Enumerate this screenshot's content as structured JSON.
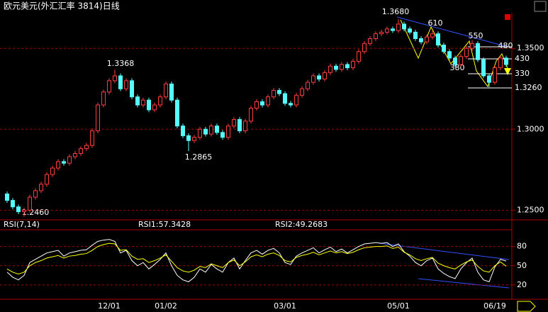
{
  "chart_data": [
    {
      "type": "candlestick",
      "title": "欧元美元(外汇汇率 3814)日线",
      "up_color": "#ff3c3c",
      "down_color": "#54ffff",
      "ylim": [
        1.244,
        1.372
      ],
      "yticks": [
        {
          "value": 1.35,
          "label": "1.3500"
        },
        {
          "value": 1.3,
          "label": "1.3000"
        },
        {
          "value": 1.25,
          "label": "1.2500"
        }
      ],
      "grid": true,
      "annotations": [
        "1.3680",
        "1.3368",
        "1.2865",
        "1.2460",
        "610",
        "550",
        "380",
        "480",
        "430",
        "330",
        "1.3260"
      ],
      "categories": [
        null,
        null,
        null,
        null,
        null,
        null,
        null,
        null,
        null,
        null,
        null,
        null,
        null,
        null,
        null,
        null,
        null,
        null,
        "12/01",
        null,
        null,
        null,
        null,
        null,
        null,
        null,
        null,
        null,
        "01/02",
        null,
        null,
        null,
        null,
        null,
        null,
        null,
        null,
        null,
        null,
        null,
        null,
        null,
        null,
        null,
        null,
        null,
        null,
        null,
        null,
        "03/01",
        null,
        null,
        null,
        null,
        null,
        null,
        null,
        null,
        null,
        null,
        null,
        null,
        null,
        null,
        null,
        null,
        null,
        null,
        null,
        "05/01",
        null,
        null,
        null,
        null,
        null,
        null,
        null,
        null,
        null,
        null,
        null,
        null,
        null,
        null,
        null,
        null,
        "06/19",
        null,
        null
      ],
      "ohlc": [
        [
          1.26,
          1.2615,
          1.2545,
          1.256
        ],
        [
          1.256,
          1.2575,
          1.2505,
          1.252
        ],
        [
          1.252,
          1.2535,
          1.2475,
          1.249
        ],
        [
          1.249,
          1.2515,
          1.246,
          1.25
        ],
        [
          1.25,
          1.2595,
          1.2485,
          1.258
        ],
        [
          1.258,
          1.2635,
          1.2565,
          1.262
        ],
        [
          1.262,
          1.2675,
          1.2605,
          1.266
        ],
        [
          1.266,
          1.2735,
          1.2645,
          1.272
        ],
        [
          1.272,
          1.2775,
          1.2705,
          1.276
        ],
        [
          1.276,
          1.2815,
          1.2745,
          1.28
        ],
        [
          1.28,
          1.2815,
          1.2775,
          1.279
        ],
        [
          1.279,
          1.2845,
          1.2775,
          1.283
        ],
        [
          1.283,
          1.2865,
          1.2815,
          1.285
        ],
        [
          1.285,
          1.2895,
          1.2835,
          1.288
        ],
        [
          1.288,
          1.2915,
          1.2865,
          1.29
        ],
        [
          1.29,
          1.3005,
          1.2885,
          1.299
        ],
        [
          1.299,
          1.3165,
          1.2975,
          1.315
        ],
        [
          1.315,
          1.3245,
          1.3135,
          1.323
        ],
        [
          1.323,
          1.3315,
          1.3215,
          1.33
        ],
        [
          1.33,
          1.3368,
          1.3285,
          1.333
        ],
        [
          1.333,
          1.3345,
          1.3235,
          1.325
        ],
        [
          1.325,
          1.3315,
          1.3235,
          1.33
        ],
        [
          1.33,
          1.3315,
          1.3185,
          1.32
        ],
        [
          1.32,
          1.3215,
          1.3135,
          1.315
        ],
        [
          1.315,
          1.3195,
          1.3135,
          1.318
        ],
        [
          1.318,
          1.3195,
          1.3105,
          1.312
        ],
        [
          1.312,
          1.3165,
          1.3105,
          1.315
        ],
        [
          1.315,
          1.3215,
          1.3135,
          1.32
        ],
        [
          1.32,
          1.3295,
          1.3185,
          1.328
        ],
        [
          1.328,
          1.3295,
          1.3165,
          1.318
        ],
        [
          1.318,
          1.3195,
          1.3005,
          1.302
        ],
        [
          1.302,
          1.3035,
          1.2945,
          1.296
        ],
        [
          1.296,
          1.2975,
          1.2865,
          1.293
        ],
        [
          1.293,
          1.2965,
          1.2915,
          1.295
        ],
        [
          1.295,
          1.3015,
          1.2935,
          1.3
        ],
        [
          1.3,
          1.3015,
          1.2955,
          1.297
        ],
        [
          1.297,
          1.3035,
          1.2955,
          1.302
        ],
        [
          1.302,
          1.3035,
          1.2965,
          1.298
        ],
        [
          1.298,
          1.2995,
          1.2935,
          1.295
        ],
        [
          1.295,
          1.3035,
          1.2935,
          1.302
        ],
        [
          1.302,
          1.3075,
          1.3005,
          1.306
        ],
        [
          1.306,
          1.3075,
          1.2975,
          1.299
        ],
        [
          1.299,
          1.3065,
          1.2975,
          1.305
        ],
        [
          1.305,
          1.3145,
          1.3035,
          1.313
        ],
        [
          1.313,
          1.3185,
          1.3115,
          1.317
        ],
        [
          1.317,
          1.3185,
          1.3135,
          1.315
        ],
        [
          1.315,
          1.3215,
          1.3135,
          1.32
        ],
        [
          1.32,
          1.3255,
          1.3185,
          1.324
        ],
        [
          1.324,
          1.3255,
          1.3205,
          1.322
        ],
        [
          1.322,
          1.3235,
          1.3145,
          1.316
        ],
        [
          1.316,
          1.3175,
          1.3135,
          1.315
        ],
        [
          1.315,
          1.3225,
          1.3135,
          1.321
        ],
        [
          1.321,
          1.3265,
          1.3195,
          1.325
        ],
        [
          1.325,
          1.3305,
          1.3235,
          1.329
        ],
        [
          1.329,
          1.3345,
          1.3275,
          1.333
        ],
        [
          1.333,
          1.3345,
          1.3295,
          1.331
        ],
        [
          1.331,
          1.3365,
          1.3295,
          1.335
        ],
        [
          1.335,
          1.3405,
          1.3335,
          1.339
        ],
        [
          1.339,
          1.3405,
          1.3355,
          1.337
        ],
        [
          1.337,
          1.3415,
          1.3355,
          1.34
        ],
        [
          1.34,
          1.3415,
          1.3365,
          1.338
        ],
        [
          1.338,
          1.3435,
          1.3365,
          1.342
        ],
        [
          1.342,
          1.3495,
          1.3405,
          1.348
        ],
        [
          1.348,
          1.3545,
          1.3465,
          1.353
        ],
        [
          1.353,
          1.3575,
          1.3515,
          1.356
        ],
        [
          1.356,
          1.3605,
          1.3545,
          1.359
        ],
        [
          1.359,
          1.3615,
          1.3575,
          1.36
        ],
        [
          1.36,
          1.3635,
          1.3585,
          1.362
        ],
        [
          1.362,
          1.3635,
          1.3595,
          1.361
        ],
        [
          1.361,
          1.368,
          1.3595,
          1.365
        ],
        [
          1.365,
          1.3665,
          1.3605,
          1.362
        ],
        [
          1.362,
          1.3635,
          1.3585,
          1.36
        ],
        [
          1.36,
          1.3615,
          1.3545,
          1.356
        ],
        [
          1.356,
          1.3575,
          1.3525,
          1.354
        ],
        [
          1.354,
          1.3585,
          1.3525,
          1.357
        ],
        [
          1.357,
          1.361,
          1.3555,
          1.359
        ],
        [
          1.359,
          1.3605,
          1.3505,
          1.352
        ],
        [
          1.352,
          1.3535,
          1.3465,
          1.348
        ],
        [
          1.348,
          1.3495,
          1.3425,
          1.344
        ],
        [
          1.344,
          1.3455,
          1.338,
          1.34
        ],
        [
          1.34,
          1.3465,
          1.3385,
          1.345
        ],
        [
          1.345,
          1.3515,
          1.3435,
          1.35
        ],
        [
          1.35,
          1.355,
          1.3485,
          1.353
        ],
        [
          1.353,
          1.3545,
          1.3415,
          1.343
        ],
        [
          1.343,
          1.3445,
          1.3315,
          1.333
        ],
        [
          1.333,
          1.3345,
          1.326,
          1.329
        ],
        [
          1.329,
          1.3395,
          1.3275,
          1.338
        ],
        [
          1.338,
          1.3455,
          1.3365,
          1.344
        ],
        [
          1.344,
          1.3455,
          1.3385,
          1.34
        ]
      ]
    },
    {
      "type": "line",
      "title": "RSI(7,14)",
      "ylim": [
        0,
        105
      ],
      "yticks": [
        80,
        50,
        20
      ],
      "grid": true,
      "series": [
        {
          "name": "RSI1:57.3428",
          "color": "#ffffff",
          "values": [
            40,
            32,
            28,
            35,
            55,
            60,
            65,
            70,
            72,
            74,
            65,
            70,
            72,
            74,
            75,
            82,
            88,
            90,
            91,
            88,
            70,
            74,
            58,
            50,
            55,
            45,
            52,
            60,
            70,
            50,
            35,
            28,
            25,
            32,
            45,
            40,
            52,
            45,
            40,
            55,
            62,
            45,
            58,
            70,
            74,
            68,
            74,
            77,
            70,
            55,
            52,
            65,
            70,
            74,
            78,
            70,
            75,
            79,
            72,
            76,
            70,
            75,
            80,
            84,
            85,
            86,
            85,
            86,
            80,
            84,
            72,
            65,
            55,
            50,
            58,
            62,
            45,
            38,
            33,
            30,
            45,
            55,
            62,
            40,
            28,
            25,
            48,
            60,
            57.3428
          ]
        },
        {
          "name": "RSI2:49.2683",
          "color": "#ffff00",
          "values": [
            45,
            40,
            37,
            40,
            50,
            55,
            58,
            62,
            64,
            66,
            62,
            65,
            66,
            68,
            69,
            74,
            80,
            83,
            85,
            84,
            74,
            75,
            65,
            60,
            61,
            55,
            58,
            62,
            67,
            57,
            47,
            42,
            40,
            43,
            49,
            47,
            53,
            50,
            47,
            55,
            59,
            50,
            56,
            64,
            67,
            64,
            68,
            70,
            66,
            58,
            56,
            63,
            66,
            68,
            71,
            67,
            70,
            73,
            70,
            72,
            69,
            71,
            75,
            78,
            79,
            80,
            80,
            81,
            77,
            79,
            71,
            67,
            61,
            58,
            61,
            63,
            54,
            50,
            47,
            45,
            51,
            56,
            59,
            49,
            42,
            40,
            50,
            56,
            49.2683
          ]
        }
      ]
    }
  ]
}
